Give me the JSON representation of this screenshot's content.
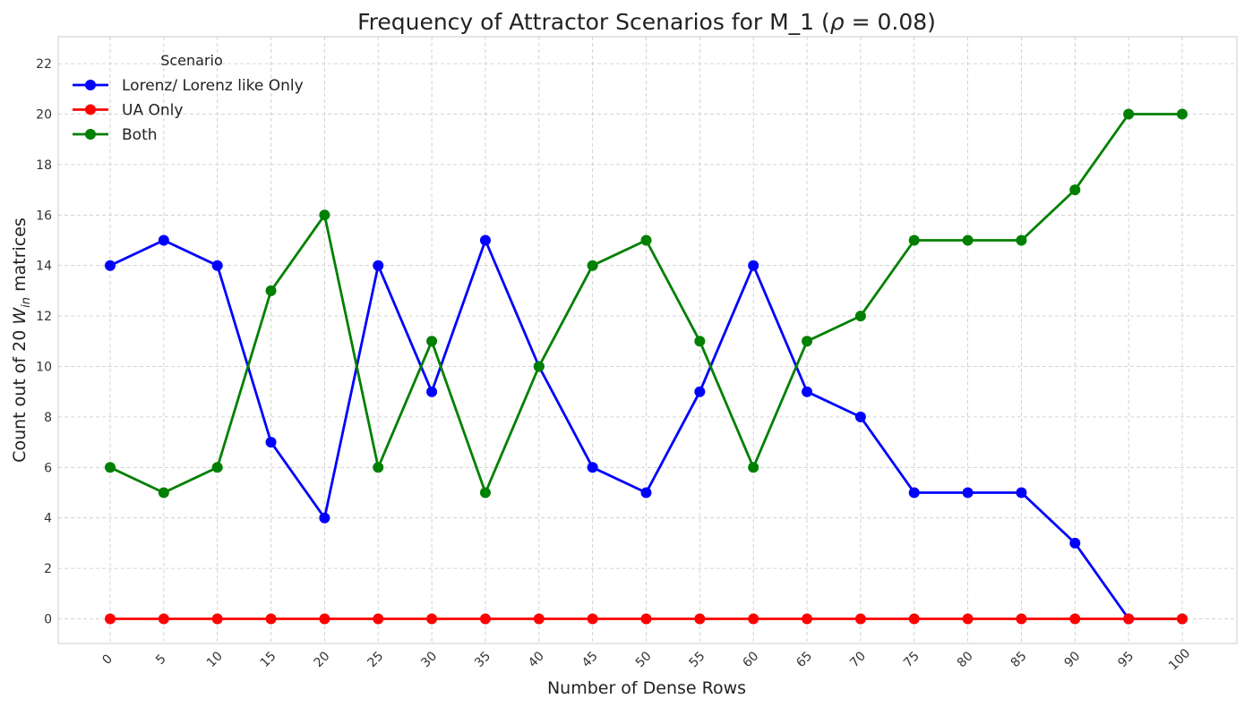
{
  "chart_data": {
    "type": "line",
    "title_prefix": "Frequency of Attractor Scenarios for M_1 (",
    "title_symbol": "ρ",
    "title_suffix": " = 0.08)",
    "xlabel": "Number of Dense Rows",
    "ylabel_prefix": "Count out of 20 ",
    "ylabel_var": "W",
    "ylabel_sub": "in",
    "ylabel_suffix": " matrices",
    "x": [
      0,
      5,
      10,
      15,
      20,
      25,
      30,
      35,
      40,
      45,
      50,
      55,
      60,
      65,
      70,
      75,
      80,
      85,
      90,
      95,
      100
    ],
    "x_tick_labels": [
      "0",
      "5",
      "10",
      "15",
      "20",
      "25",
      "30",
      "35",
      "40",
      "45",
      "50",
      "55",
      "60",
      "65",
      "70",
      "75",
      "80",
      "85",
      "90",
      "95",
      "100"
    ],
    "y_ticks": [
      0,
      2,
      4,
      6,
      8,
      10,
      12,
      14,
      16,
      18,
      20,
      22
    ],
    "y_tick_labels": [
      "0",
      "2",
      "4",
      "6",
      "8",
      "10",
      "12",
      "14",
      "16",
      "18",
      "20",
      "22"
    ],
    "ylim": [
      -1,
      23
    ],
    "grid": true,
    "legend_title": "Scenario",
    "legend_position": "upper left",
    "series": [
      {
        "name": "Lorenz/ Lorenz like Only",
        "color": "#0000ff",
        "values": [
          14,
          15,
          14,
          7,
          4,
          14,
          9,
          15,
          10,
          6,
          5,
          9,
          14,
          9,
          8,
          5,
          5,
          5,
          3,
          0,
          0
        ]
      },
      {
        "name": "UA Only",
        "color": "#ff0000",
        "values": [
          0,
          0,
          0,
          0,
          0,
          0,
          0,
          0,
          0,
          0,
          0,
          0,
          0,
          0,
          0,
          0,
          0,
          0,
          0,
          0,
          0
        ]
      },
      {
        "name": "Both",
        "color": "#008000",
        "values": [
          6,
          5,
          6,
          13,
          16,
          6,
          11,
          5,
          10,
          14,
          15,
          11,
          6,
          11,
          12,
          15,
          15,
          15,
          17,
          20,
          20
        ]
      }
    ]
  }
}
